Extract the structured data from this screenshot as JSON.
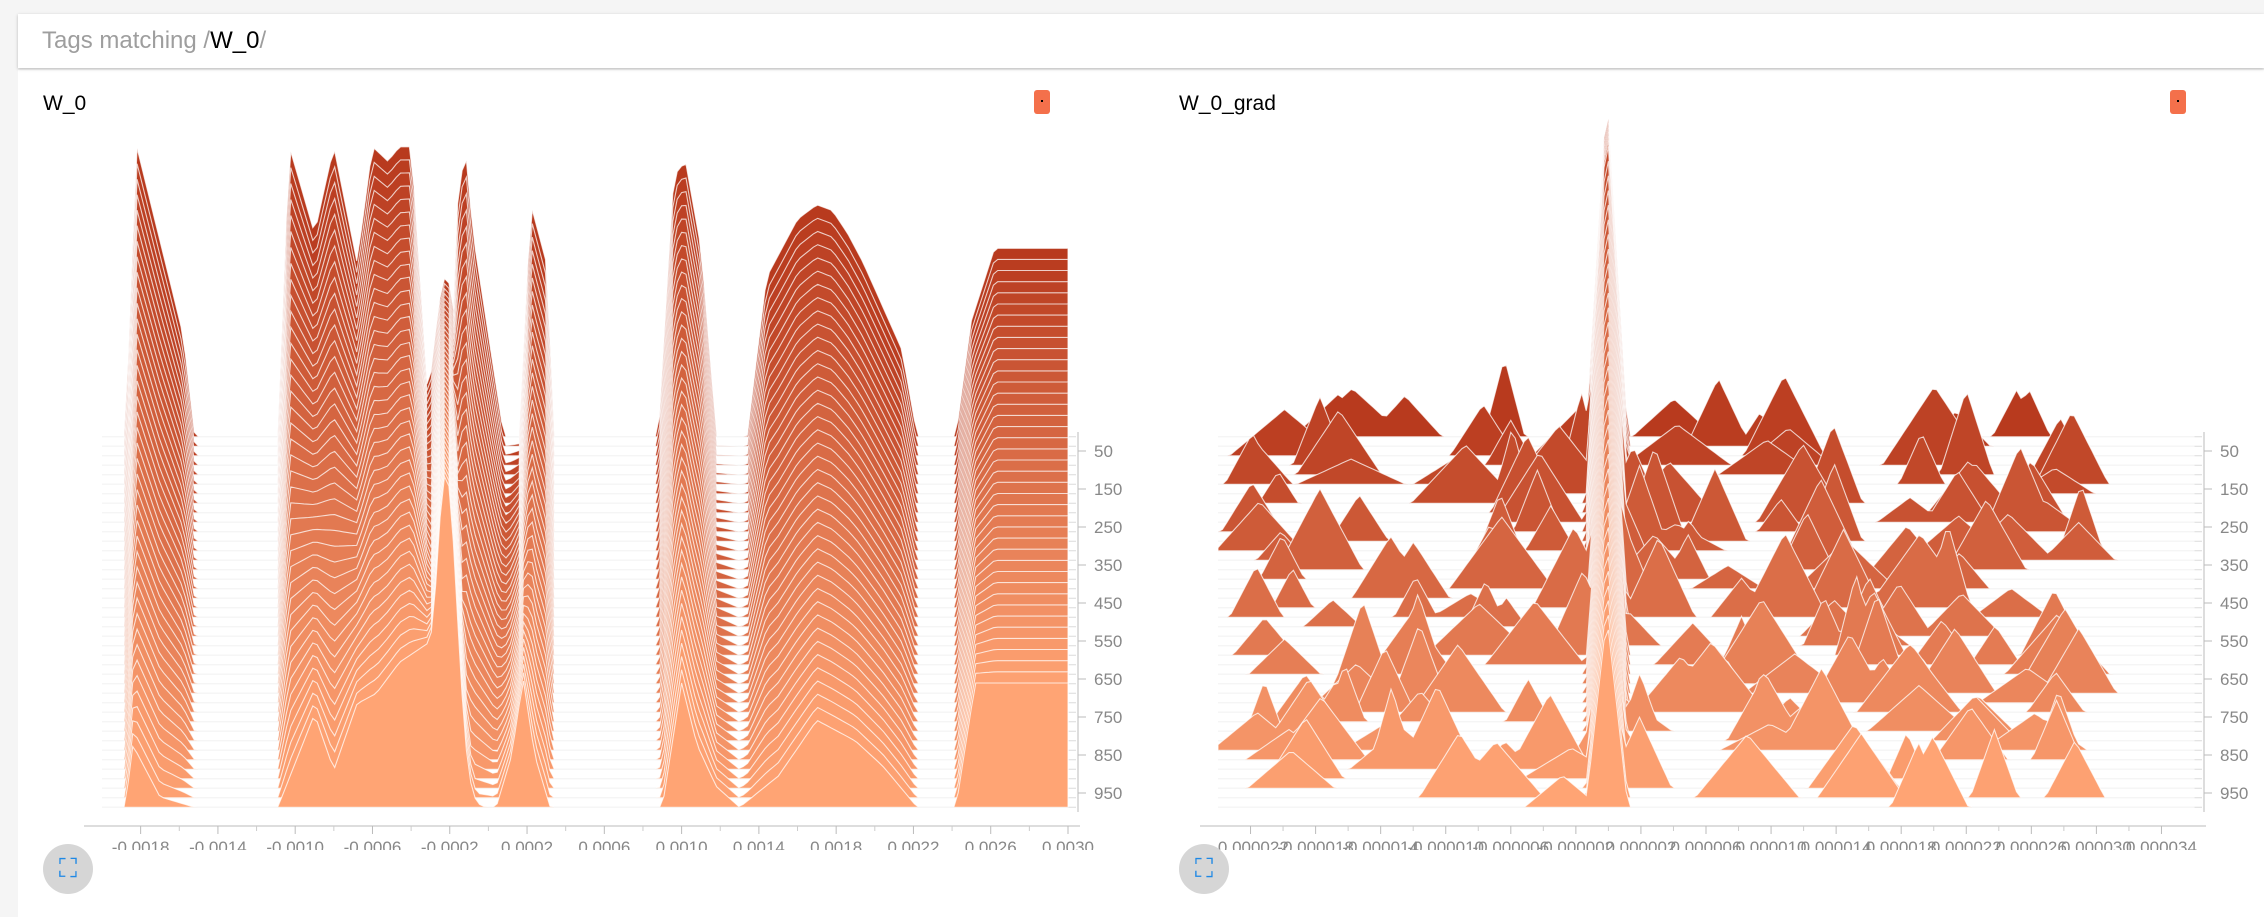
{
  "header": {
    "prefix": "Tags matching /",
    "pattern": "W_0",
    "suffix": "/"
  },
  "colors": {
    "ridge_back": "#b83a1e",
    "ridge_front": "#ffa474",
    "ridge_highlight": "#ffe0d0",
    "legend_chip": "#f4704b",
    "expand_icon": "#1e88e5"
  },
  "cards": [
    {
      "title": "W_0",
      "expand_icon": "fullscreen-icon"
    },
    {
      "title": "W_0_grad",
      "expand_icon": "fullscreen-icon"
    }
  ],
  "chart_data": [
    {
      "type": "area",
      "subtype": "histogram-ridgeline",
      "title": "W_0",
      "xlim": [
        -0.002,
        0.003
      ],
      "xticks": [
        "-0.0018",
        "-0.0014",
        "-0.0010",
        "-0.0006",
        "-0.0002",
        "0.0002",
        "0.0006",
        "0.0010",
        "0.0014",
        "0.0018",
        "0.0022",
        "0.0026",
        "0.0030"
      ],
      "xtick_values": [
        -0.0018,
        -0.0014,
        -0.001,
        -0.0006,
        -0.0002,
        0.0002,
        0.0006,
        0.001,
        0.0014,
        0.0018,
        0.0022,
        0.0026,
        0.003
      ],
      "yticks": [
        "50",
        "150",
        "250",
        "350",
        "450",
        "550",
        "650",
        "750",
        "850",
        "950"
      ],
      "ytick_values": [
        50,
        150,
        250,
        350,
        450,
        550,
        650,
        750,
        850,
        950
      ],
      "step_range": [
        0,
        1000
      ],
      "num_slices": 40,
      "back_profile": {
        "x": [
          -0.00188,
          -0.00182,
          -0.00158,
          -0.00152,
          -0.00109,
          -0.00103,
          -0.0009,
          -0.0008,
          -0.00068,
          -0.0006,
          -0.00052,
          -0.00046,
          -0.0004,
          -0.0003,
          -0.0002,
          -0.00016,
          -0.00012,
          -8e-05,
          8e-05,
          0.00016,
          0.00022,
          0.0003,
          0.00034,
          0.00038,
          0.00088,
          0.00096,
          0.00102,
          0.0011,
          0.00118,
          0.00126,
          0.00134,
          0.00144,
          0.00152,
          0.0016,
          0.0017,
          0.00178,
          0.00186,
          0.00194,
          0.00204,
          0.00214,
          0.00222,
          0.00232,
          0.00242,
          0.0025,
          0.00262
        ],
        "y": [
          0,
          1.0,
          0.35,
          0,
          0,
          1.0,
          0.7,
          1.0,
          0.6,
          1.0,
          0.95,
          1.0,
          1.0,
          0,
          0.0,
          0.8,
          1.0,
          0.7,
          0,
          0.0,
          0.8,
          0.6,
          0,
          0,
          0,
          0.9,
          0.95,
          0.65,
          0,
          0,
          0,
          0.55,
          0.65,
          0.75,
          0.8,
          0.78,
          0.7,
          0.6,
          0.45,
          0.3,
          0,
          0,
          0,
          0.4,
          0.65
        ],
        "y_max": 1.0
      },
      "front_profile": {
        "x": [
          -0.00188,
          -0.00184,
          -0.0017,
          -0.00152,
          -0.00109,
          -0.0009,
          -0.0008,
          -0.00068,
          -0.00058,
          -0.00046,
          -0.0003,
          -0.00024,
          -0.00016,
          -8e-05,
          4e-05,
          0.00012,
          0.00018,
          0.00024,
          0.00032,
          0.00038,
          0.0009,
          0.001,
          0.00108,
          0.00118,
          0.0013,
          0.0015,
          0.0017,
          0.0019,
          0.00204,
          0.00222,
          0.00232,
          0.00242,
          0.00252,
          0.00262
        ],
        "y": [
          0,
          0.3,
          0.05,
          0,
          0,
          0.45,
          0.18,
          0.5,
          0.55,
          0.7,
          0.8,
          1.4,
          0.0,
          0.0,
          0.0,
          0.25,
          0.62,
          0.25,
          0.0,
          0.0,
          0.0,
          0.6,
          0.3,
          0.1,
          0.0,
          0.15,
          0.42,
          0.32,
          0.2,
          0.0,
          0.0,
          0.0,
          0.6,
          0.6
        ],
        "y_max": 1.4
      }
    },
    {
      "type": "area",
      "subtype": "histogram-ridgeline",
      "title": "W_0_grad",
      "xlim": [
        -2.4e-05,
        3.6e-05
      ],
      "xticks": [
        "-0.000022",
        "-0.000018",
        "-0.000014",
        "-0.000010",
        "-0.000006",
        "-0.000002",
        "0.000002",
        "0.000006",
        "0.000010",
        "0.000014",
        "0.000018",
        "0.000022",
        "0.000026",
        "0.000030",
        "0.000034"
      ],
      "xtick_values": [
        -2.2e-05,
        -1.8e-05,
        -1.4e-05,
        -1e-05,
        -6e-06,
        -2e-06,
        2e-06,
        6e-06,
        1e-05,
        1.4e-05,
        1.8e-05,
        2.2e-05,
        2.6e-05,
        3e-05,
        3.4e-05
      ],
      "yticks": [
        "50",
        "150",
        "250",
        "350",
        "450",
        "550",
        "650",
        "750",
        "850",
        "950"
      ],
      "ytick_values": [
        50,
        150,
        250,
        350,
        450,
        550,
        650,
        750,
        850,
        950
      ],
      "step_range": [
        0,
        1000
      ],
      "num_slices": 40,
      "central_peak": {
        "x": -1e-07,
        "half_width": 1.3e-06
      }
    }
  ]
}
